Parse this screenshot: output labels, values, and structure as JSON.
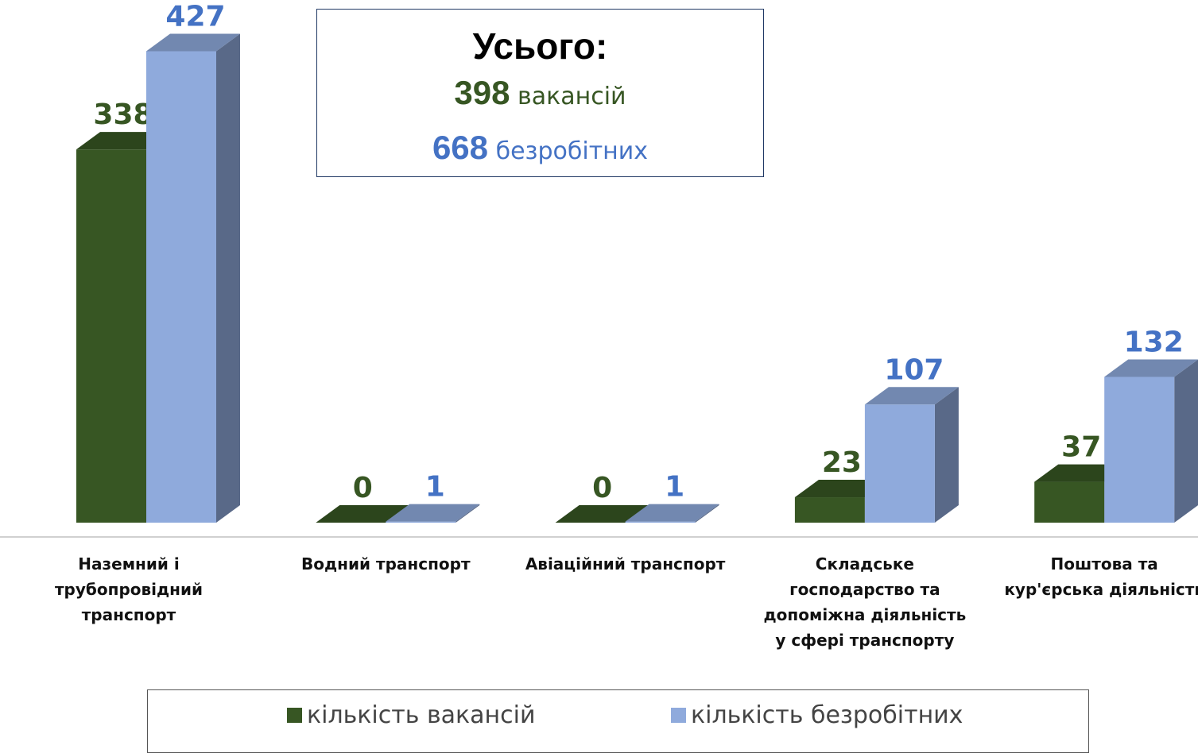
{
  "chart_data": {
    "type": "bar3d",
    "categories": [
      "Наземний і трубопровідний транспорт",
      "Водний транспорт",
      "Авіаційний транспорт",
      "Складське господарство та допоміжна діяльність у сфері транспорту",
      "Поштова та кур'єрська діяльність"
    ],
    "series": [
      {
        "name": "кількість вакансій",
        "color": "#375623",
        "label_color": "#375623",
        "values": [
          338,
          0,
          0,
          23,
          37
        ]
      },
      {
        "name": "кількість безробітних",
        "color": "#8faadc",
        "label_color": "#4472c4",
        "values": [
          427,
          1,
          1,
          107,
          132
        ]
      }
    ],
    "legend": "bottom",
    "annotation": {
      "title": "Усього:",
      "lines": [
        {
          "value": 398,
          "label": "вакансій"
        },
        {
          "value": 668,
          "label": "безробітних"
        }
      ]
    }
  }
}
